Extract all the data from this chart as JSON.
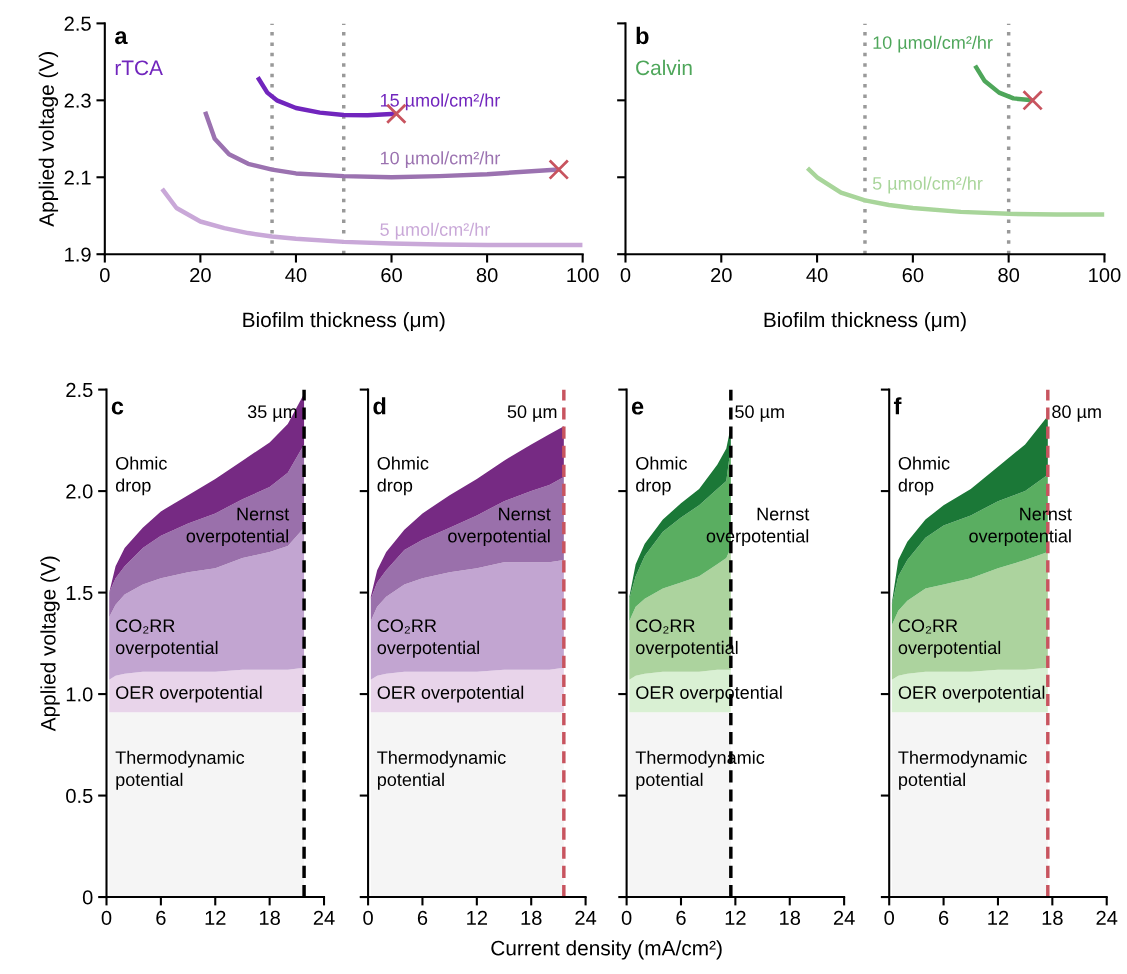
{
  "chart_data": [
    {
      "type": "line",
      "title": "a",
      "subtitle": "rTCA",
      "xlabel": "Biofilm thickness (μm)",
      "ylabel": "Applied voltage (V)",
      "xlim": [
        0,
        100
      ],
      "xticks": [
        0,
        20,
        40,
        60,
        80,
        100
      ],
      "ylim": [
        1.9,
        2.5
      ],
      "yticks": [
        1.9,
        2.1,
        2.3,
        2.5
      ],
      "grid": false,
      "legend": false,
      "line_style": "solid",
      "ref_lines": [
        {
          "axis": "x",
          "value": 35,
          "color": "#999999",
          "line_style": "dotted"
        },
        {
          "axis": "x",
          "value": 50,
          "color": "#999999",
          "line_style": "dotted"
        }
      ],
      "series": [
        {
          "name": "15 µmol/cm²/hr",
          "color": "#7125bd",
          "x": [
            32,
            34,
            36,
            40,
            45,
            50,
            55,
            61
          ],
          "values": [
            2.36,
            2.32,
            2.3,
            2.28,
            2.268,
            2.262,
            2.261,
            2.265
          ]
        },
        {
          "name": "10 µmol/cm²/hr",
          "color": "#9b72b0",
          "x": [
            21,
            23,
            26,
            30,
            35,
            40,
            50,
            60,
            70,
            80,
            95
          ],
          "values": [
            2.27,
            2.2,
            2.16,
            2.135,
            2.12,
            2.11,
            2.103,
            2.1,
            2.103,
            2.108,
            2.12
          ]
        },
        {
          "name": "5 µmol/cm²/hr",
          "color": "#c9a8d8",
          "x": [
            12,
            15,
            20,
            25,
            30,
            35,
            40,
            50,
            60,
            70,
            80,
            100
          ],
          "values": [
            2.07,
            2.02,
            1.985,
            1.968,
            1.955,
            1.946,
            1.94,
            1.932,
            1.928,
            1.925,
            1.924,
            1.924
          ]
        },
        {
          "type": "scatter",
          "marker": "cross",
          "color": "#c8545f",
          "x": [
            61,
            95
          ],
          "values": [
            2.265,
            2.12
          ]
        }
      ]
    },
    {
      "type": "line",
      "title": "b",
      "subtitle": "Calvin",
      "xlabel": "Biofilm thickness (μm)",
      "xlim": [
        0,
        100
      ],
      "xticks": [
        0,
        20,
        40,
        60,
        80,
        100
      ],
      "ylim": [
        1.9,
        2.5
      ],
      "yticks": [
        1.9,
        2.1,
        2.3,
        2.5
      ],
      "tick_labels": "x",
      "grid": false,
      "legend": false,
      "line_style": "solid",
      "ref_lines": [
        {
          "axis": "x",
          "value": 50,
          "color": "#999999",
          "line_style": "dotted"
        },
        {
          "axis": "x",
          "value": 80,
          "color": "#999999",
          "line_style": "dotted"
        }
      ],
      "series": [
        {
          "name": "10 µmol/cm²/hr",
          "color": "#4ea65a",
          "x": [
            73,
            75,
            78,
            81,
            85
          ],
          "values": [
            2.39,
            2.35,
            2.32,
            2.305,
            2.3
          ]
        },
        {
          "name": "5 µmol/cm²/hr",
          "color": "#a8d59a",
          "x": [
            38,
            40,
            45,
            50,
            55,
            60,
            70,
            80,
            90,
            100
          ],
          "values": [
            2.124,
            2.1,
            2.06,
            2.04,
            2.028,
            2.02,
            2.01,
            2.005,
            2.003,
            2.003
          ]
        },
        {
          "type": "scatter",
          "marker": "cross",
          "color": "#c8545f",
          "x": [
            85
          ],
          "values": [
            2.3
          ]
        }
      ]
    },
    {
      "type": "area",
      "stacked": true,
      "title": "c",
      "ylabel": "Applied voltage (V)",
      "xlim": [
        0,
        24
      ],
      "xticks": [
        0,
        6,
        12,
        18,
        24
      ],
      "ylim": [
        0,
        2.5
      ],
      "yticks": [
        0,
        0.5,
        {
          "value": 1,
          "label": "1.0"
        },
        1.5,
        {
          "value": 2,
          "label": "2.0"
        },
        2.5
      ],
      "grid": false,
      "legend": false,
      "ref_lines": [
        {
          "axis": "x",
          "value": 21.8,
          "label": "35 µm",
          "color": "#000000",
          "line_style": "dashed"
        }
      ],
      "x": [
        0.3,
        1,
        2,
        4,
        6,
        9,
        12,
        15,
        18,
        20,
        21.8
      ],
      "series": [
        {
          "name": "Thermodynamic\npotential",
          "color": "#f5f5f5",
          "values": [
            0.91,
            0.91,
            0.91,
            0.91,
            0.91,
            0.91,
            0.91,
            0.91,
            0.91,
            0.91,
            0.91
          ]
        },
        {
          "name": "OER overpotential",
          "color": "#e8d4ea",
          "values": [
            0.16,
            0.18,
            0.19,
            0.2,
            0.2,
            0.2,
            0.2,
            0.21,
            0.21,
            0.21,
            0.22
          ]
        },
        {
          "name": "CO₂RR\noverpotential",
          "color": "#c2a5d1",
          "values": [
            0.31,
            0.35,
            0.39,
            0.43,
            0.46,
            0.49,
            0.51,
            0.55,
            0.58,
            0.61,
            0.69
          ]
        },
        {
          "name": "Nernst\noverpotential",
          "color": "#9a70ab",
          "values": [
            0.12,
            0.13,
            0.14,
            0.18,
            0.21,
            0.24,
            0.27,
            0.29,
            0.32,
            0.36,
            0.41
          ]
        },
        {
          "name": "Ohmic\ndrop",
          "color": "#762a83",
          "values": [
            0,
            0.06,
            0.09,
            0.1,
            0.12,
            0.14,
            0.17,
            0.19,
            0.22,
            0.24,
            0.25
          ]
        }
      ]
    },
    {
      "type": "area",
      "stacked": true,
      "title": "d",
      "xlabel": "Current density (mA/cm²)",
      "xlim": [
        0,
        24
      ],
      "xticks": [
        0,
        6,
        12,
        18,
        24
      ],
      "ylim": [
        0,
        2.5
      ],
      "yticks": [
        0,
        0.5,
        1,
        1.5,
        2,
        2.5
      ],
      "tick_labels": "x",
      "grid": false,
      "legend": false,
      "ref_lines": [
        {
          "axis": "x",
          "value": 21.6,
          "label": "50 µm",
          "color": "#c8545f",
          "line_style": "dashed"
        }
      ],
      "x": [
        0.3,
        1,
        2,
        4,
        6,
        9,
        12,
        15,
        18,
        20,
        21.6
      ],
      "series": [
        {
          "name": "Thermodynamic\npotential",
          "color": "#f5f5f5",
          "values": [
            0.91,
            0.91,
            0.91,
            0.91,
            0.91,
            0.91,
            0.91,
            0.91,
            0.91,
            0.91,
            0.91
          ]
        },
        {
          "name": "OER overpotential",
          "color": "#e8d4ea",
          "values": [
            0.16,
            0.18,
            0.19,
            0.2,
            0.2,
            0.2,
            0.2,
            0.21,
            0.21,
            0.21,
            0.22
          ]
        },
        {
          "name": "CO₂RR\noverpotential",
          "color": "#c2a5d1",
          "values": [
            0.29,
            0.34,
            0.38,
            0.43,
            0.46,
            0.49,
            0.51,
            0.53,
            0.53,
            0.53,
            0.53
          ]
        },
        {
          "name": "Nernst\noverpotential",
          "color": "#9a70ab",
          "values": [
            0.11,
            0.12,
            0.13,
            0.17,
            0.19,
            0.22,
            0.26,
            0.3,
            0.35,
            0.38,
            0.41
          ]
        },
        {
          "name": "Ohmic\ndrop",
          "color": "#762a83",
          "values": [
            0.01,
            0.06,
            0.09,
            0.1,
            0.13,
            0.16,
            0.18,
            0.2,
            0.23,
            0.25,
            0.25
          ]
        }
      ]
    },
    {
      "type": "area",
      "stacked": true,
      "title": "e",
      "xlim": [
        0,
        24
      ],
      "xticks": [
        0,
        6,
        12,
        18,
        24
      ],
      "ylim": [
        0,
        2.5
      ],
      "yticks": [
        0,
        0.5,
        1,
        1.5,
        2,
        2.5
      ],
      "tick_labels": "x",
      "grid": false,
      "legend": false,
      "ref_lines": [
        {
          "axis": "x",
          "value": 11.5,
          "label": "50 µm",
          "color": "#000000",
          "line_style": "dashed"
        }
      ],
      "x": [
        0.3,
        1,
        2,
        4,
        6,
        8,
        10,
        11,
        11.5
      ],
      "series": [
        {
          "name": "Thermodynamic\npotential",
          "color": "#f5f5f5",
          "values": [
            0.91,
            0.91,
            0.91,
            0.91,
            0.91,
            0.91,
            0.91,
            0.91,
            0.91
          ]
        },
        {
          "name": "OER overpotential",
          "color": "#d9f0d3",
          "values": [
            0.16,
            0.18,
            0.19,
            0.2,
            0.2,
            0.2,
            0.21,
            0.21,
            0.21
          ]
        },
        {
          "name": "CO₂RR\noverpotential",
          "color": "#acd39e",
          "values": [
            0.29,
            0.34,
            0.37,
            0.41,
            0.44,
            0.47,
            0.52,
            0.55,
            0.6
          ]
        },
        {
          "name": "Nernst\noverpotential",
          "color": "#5aae61",
          "values": [
            0.11,
            0.15,
            0.21,
            0.28,
            0.32,
            0.35,
            0.37,
            0.38,
            0.5
          ]
        },
        {
          "name": "Ohmic\ndrop",
          "color": "#1b7837",
          "values": [
            0.01,
            0.06,
            0.06,
            0.06,
            0.07,
            0.08,
            0.12,
            0.16,
            0.1
          ]
        }
      ]
    },
    {
      "type": "area",
      "stacked": true,
      "title": "f",
      "xlim": [
        0,
        24
      ],
      "xticks": [
        0,
        6,
        12,
        18,
        24
      ],
      "ylim": [
        0,
        2.5
      ],
      "yticks": [
        0,
        0.5,
        1,
        1.5,
        2,
        2.5
      ],
      "tick_labels": "x",
      "grid": false,
      "legend": false,
      "ref_lines": [
        {
          "axis": "x",
          "value": 17.5,
          "label": "80 µm",
          "color": "#c8545f",
          "line_style": "dashed"
        }
      ],
      "x": [
        0.3,
        1,
        2,
        4,
        6,
        9,
        12,
        15,
        17.5
      ],
      "series": [
        {
          "name": "Thermodynamic\npotential",
          "color": "#f5f5f5",
          "values": [
            0.91,
            0.91,
            0.91,
            0.91,
            0.91,
            0.91,
            0.91,
            0.91,
            0.91
          ]
        },
        {
          "name": "OER overpotential",
          "color": "#d9f0d3",
          "values": [
            0.16,
            0.18,
            0.19,
            0.2,
            0.2,
            0.2,
            0.21,
            0.21,
            0.22
          ]
        },
        {
          "name": "CO₂RR\noverpotential",
          "color": "#acd39e",
          "values": [
            0.27,
            0.32,
            0.36,
            0.41,
            0.43,
            0.46,
            0.5,
            0.54,
            0.57
          ]
        },
        {
          "name": "Nernst\noverpotential",
          "color": "#5aae61",
          "values": [
            0.1,
            0.17,
            0.2,
            0.25,
            0.29,
            0.31,
            0.33,
            0.34,
            0.38
          ]
        },
        {
          "name": "Ohmic\ndrop",
          "color": "#1b7837",
          "values": [
            0.01,
            0.08,
            0.09,
            0.09,
            0.1,
            0.13,
            0.17,
            0.23,
            0.29
          ]
        }
      ]
    }
  ]
}
